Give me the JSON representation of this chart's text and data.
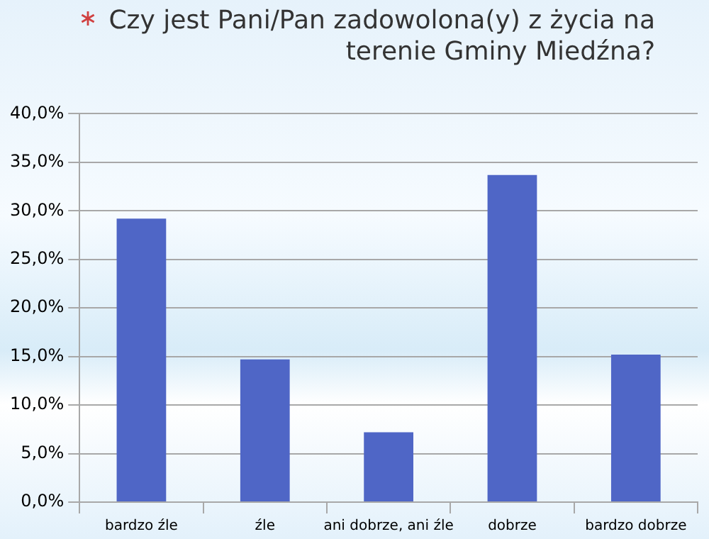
{
  "chart_data": {
    "type": "bar",
    "title": "Czy jest Pani/Pan zadowolona(y) z życia na terenie Gminy Miedźna?",
    "categories": [
      "bardzo źle",
      "źle",
      "ani dobrze, ani źle",
      "dobrze",
      "bardzo dobrze"
    ],
    "values": [
      29.2,
      14.7,
      7.2,
      33.7,
      15.2
    ],
    "color": "#4f66c6",
    "ylim": [
      0,
      40
    ],
    "yticks": [
      {
        "value": 0,
        "label": "0,0%"
      },
      {
        "value": 5,
        "label": "5,0%"
      },
      {
        "value": 10,
        "label": "10,0%"
      },
      {
        "value": 15,
        "label": "15,0%"
      },
      {
        "value": 20,
        "label": "20,0%"
      },
      {
        "value": 25,
        "label": "25,0%"
      },
      {
        "value": 30,
        "label": "30,0%"
      },
      {
        "value": 35,
        "label": "35,0%"
      },
      {
        "value": 40,
        "label": "40,0%"
      }
    ],
    "grid": "y",
    "legend": false
  }
}
